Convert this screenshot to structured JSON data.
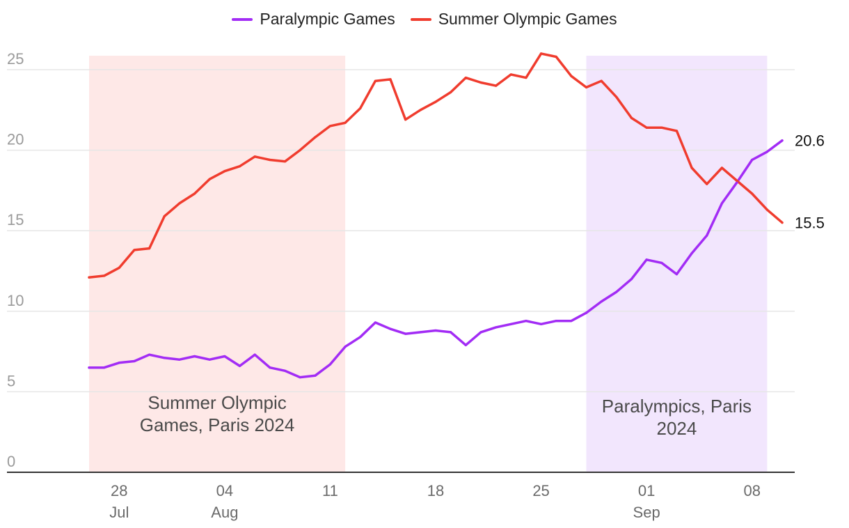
{
  "colors": {
    "paralympic": "#a22cf5",
    "olympic": "#f03c2e",
    "olympic_band": "#fee8e7",
    "paralympic_band": "#f2e6fd",
    "grid": "#e6e6e6",
    "axis": "#333333"
  },
  "chart_data": {
    "type": "line",
    "ylim": [
      0,
      25
    ],
    "y_ticks": [
      "0",
      "5",
      "10",
      "15",
      "20",
      "25"
    ],
    "x_ticks": [
      {
        "date": "2024-07-28",
        "day": "28",
        "month": "Jul"
      },
      {
        "date": "2024-08-04",
        "day": "04",
        "month": "Aug"
      },
      {
        "date": "2024-08-11",
        "day": "11",
        "month": ""
      },
      {
        "date": "2024-08-18",
        "day": "18",
        "month": ""
      },
      {
        "date": "2024-08-25",
        "day": "25",
        "month": ""
      },
      {
        "date": "2024-09-01",
        "day": "01",
        "month": "Sep"
      },
      {
        "date": "2024-09-08",
        "day": "08",
        "month": ""
      }
    ],
    "x": [
      "2024-07-26",
      "2024-07-27",
      "2024-07-28",
      "2024-07-29",
      "2024-07-30",
      "2024-07-31",
      "2024-08-01",
      "2024-08-02",
      "2024-08-03",
      "2024-08-04",
      "2024-08-05",
      "2024-08-06",
      "2024-08-07",
      "2024-08-08",
      "2024-08-09",
      "2024-08-10",
      "2024-08-11",
      "2024-08-12",
      "2024-08-13",
      "2024-08-14",
      "2024-08-15",
      "2024-08-16",
      "2024-08-17",
      "2024-08-18",
      "2024-08-19",
      "2024-08-20",
      "2024-08-21",
      "2024-08-22",
      "2024-08-23",
      "2024-08-24",
      "2024-08-25",
      "2024-08-26",
      "2024-08-27",
      "2024-08-28",
      "2024-08-29",
      "2024-08-30",
      "2024-08-31",
      "2024-09-01",
      "2024-09-02",
      "2024-09-03",
      "2024-09-04",
      "2024-09-05",
      "2024-09-06",
      "2024-09-07",
      "2024-09-08",
      "2024-09-09",
      "2024-09-10"
    ],
    "series": [
      {
        "name": "Paralympic Games",
        "end_label": "20.6",
        "values": [
          6.5,
          6.5,
          6.8,
          6.9,
          7.3,
          7.1,
          7.0,
          7.2,
          7.0,
          7.2,
          6.6,
          7.3,
          6.5,
          6.3,
          5.9,
          6.0,
          6.7,
          7.8,
          8.4,
          9.3,
          8.9,
          8.6,
          8.7,
          8.8,
          8.7,
          7.9,
          8.7,
          9.0,
          9.2,
          9.4,
          9.2,
          9.4,
          9.4,
          9.9,
          10.6,
          11.2,
          12.0,
          13.2,
          13.0,
          12.3,
          13.6,
          14.7,
          16.7,
          18.0,
          19.4,
          19.9,
          20.6
        ]
      },
      {
        "name": "Summer Olympic Games",
        "end_label": "15.5",
        "values": [
          12.1,
          12.2,
          12.7,
          13.8,
          13.9,
          15.9,
          16.7,
          17.3,
          18.2,
          18.7,
          19.0,
          19.6,
          19.4,
          19.3,
          20.0,
          20.8,
          21.5,
          21.7,
          22.6,
          24.3,
          24.4,
          21.9,
          22.5,
          23.0,
          23.6,
          24.5,
          24.2,
          24.0,
          24.7,
          24.5,
          26.0,
          25.8,
          24.6,
          23.9,
          24.3,
          23.3,
          22.0,
          21.4,
          21.4,
          21.2,
          18.9,
          17.9,
          18.9,
          18.1,
          17.3,
          16.3,
          15.5
        ]
      }
    ],
    "bands": [
      {
        "start": "2024-07-26",
        "end": "2024-08-12",
        "label_lines": [
          "Summer Olympic",
          "Games, Paris 2024"
        ],
        "series": "olympic"
      },
      {
        "start": "2024-08-28",
        "end": "2024-09-09",
        "label_lines": [
          "Paralympics, Paris",
          "2024"
        ],
        "series": "paralympic"
      }
    ],
    "legend": [
      "Paralympic Games",
      "Summer Olympic Games"
    ],
    "legend_position": "top-center",
    "grid": true
  }
}
